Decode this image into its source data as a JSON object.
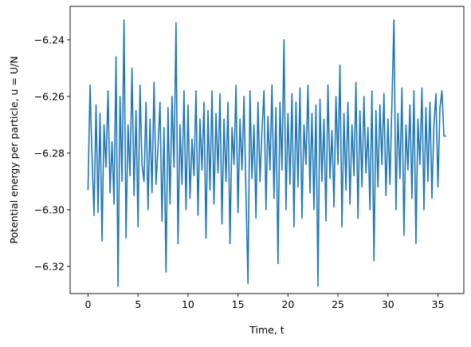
{
  "chart_data": {
    "type": "line",
    "xlabel": "Time, t",
    "ylabel": "Potential energy per particle, u = U/N",
    "color": "#1f77b4",
    "xlim": [
      -1.79,
      37.59
    ],
    "ylim": [
      -6.3296,
      -6.2282
    ],
    "xticks": [
      0,
      5,
      10,
      15,
      20,
      25,
      30,
      35
    ],
    "yticks": [
      {
        "value": -6.32,
        "label": "−6.32"
      },
      {
        "value": -6.3,
        "label": "−6.30"
      },
      {
        "value": -6.28,
        "label": "−6.28"
      },
      {
        "value": -6.26,
        "label": "−6.26"
      },
      {
        "value": -6.24,
        "label": "−6.24"
      }
    ],
    "x": [
      0,
      0.2,
      0.4,
      0.6,
      0.8,
      1,
      1.2,
      1.4,
      1.6,
      1.8,
      2,
      2.2,
      2.4,
      2.6,
      2.8,
      3,
      3.2,
      3.4,
      3.6,
      3.8,
      4,
      4.2,
      4.4,
      4.6,
      4.8,
      5,
      5.2,
      5.4,
      5.6,
      5.8,
      6,
      6.2,
      6.4,
      6.6,
      6.8,
      7,
      7.2,
      7.4,
      7.6,
      7.8,
      8,
      8.2,
      8.4,
      8.6,
      8.8,
      9,
      9.2,
      9.4,
      9.6,
      9.8,
      10,
      10.2,
      10.4,
      10.6,
      10.8,
      11,
      11.2,
      11.4,
      11.6,
      11.8,
      12,
      12.2,
      12.4,
      12.6,
      12.8,
      13,
      13.2,
      13.4,
      13.6,
      13.8,
      14,
      14.2,
      14.4,
      14.6,
      14.8,
      15,
      15.2,
      15.4,
      15.6,
      15.8,
      16,
      16.2,
      16.4,
      16.6,
      16.8,
      17,
      17.2,
      17.4,
      17.6,
      17.8,
      18,
      18.2,
      18.4,
      18.6,
      18.8,
      19,
      19.2,
      19.4,
      19.6,
      19.8,
      20,
      20.2,
      20.4,
      20.6,
      20.8,
      21,
      21.2,
      21.4,
      21.6,
      21.8,
      22,
      22.2,
      22.4,
      22.6,
      22.8,
      23,
      23.2,
      23.4,
      23.6,
      23.8,
      24,
      24.2,
      24.4,
      24.6,
      24.8,
      25,
      25.2,
      25.4,
      25.6,
      25.8,
      26,
      26.2,
      26.4,
      26.6,
      26.8,
      27,
      27.2,
      27.4,
      27.6,
      27.8,
      28,
      28.2,
      28.4,
      28.6,
      28.8,
      29,
      29.2,
      29.4,
      29.6,
      29.8,
      30,
      30.2,
      30.4,
      30.6,
      30.8,
      31,
      31.2,
      31.4,
      31.6,
      31.8,
      32,
      32.2,
      32.4,
      32.6,
      32.8,
      33,
      33.2,
      33.4,
      33.6,
      33.8,
      34,
      34.2,
      34.4,
      34.6,
      34.8,
      35,
      35.2,
      35.4,
      35.6,
      35.8
    ],
    "values": [
      -6.293,
      -6.256,
      -6.281,
      -6.302,
      -6.263,
      -6.301,
      -6.266,
      -6.311,
      -6.27,
      -6.285,
      -6.258,
      -6.294,
      -6.276,
      -6.298,
      -6.246,
      -6.327,
      -6.26,
      -6.29,
      -6.233,
      -6.31,
      -6.27,
      -6.288,
      -6.25,
      -6.295,
      -6.265,
      -6.306,
      -6.256,
      -6.284,
      -6.29,
      -6.262,
      -6.3,
      -6.268,
      -6.294,
      -6.255,
      -6.291,
      -6.278,
      -6.262,
      -6.304,
      -6.271,
      -6.322,
      -6.264,
      -6.298,
      -6.26,
      -6.285,
      -6.234,
      -6.312,
      -6.27,
      -6.291,
      -6.258,
      -6.3,
      -6.263,
      -6.296,
      -6.275,
      -6.288,
      -6.258,
      -6.302,
      -6.268,
      -6.286,
      -6.262,
      -6.31,
      -6.265,
      -6.293,
      -6.258,
      -6.298,
      -6.266,
      -6.287,
      -6.259,
      -6.305,
      -6.268,
      -6.29,
      -6.262,
      -6.312,
      -6.271,
      -6.284,
      -6.256,
      -6.301,
      -6.268,
      -6.286,
      -6.26,
      -6.295,
      -6.326,
      -6.258,
      -6.289,
      -6.27,
      -6.303,
      -6.262,
      -6.29,
      -6.272,
      -6.258,
      -6.3,
      -6.267,
      -6.286,
      -6.256,
      -6.296,
      -6.264,
      -6.319,
      -6.262,
      -6.286,
      -6.24,
      -6.3,
      -6.266,
      -6.291,
      -6.259,
      -6.306,
      -6.262,
      -6.292,
      -6.257,
      -6.303,
      -6.27,
      -6.284,
      -6.256,
      -6.294,
      -6.266,
      -6.3,
      -6.263,
      -6.327,
      -6.261,
      -6.29,
      -6.268,
      -6.304,
      -6.256,
      -6.289,
      -6.272,
      -6.299,
      -6.26,
      -6.284,
      -6.249,
      -6.306,
      -6.266,
      -6.293,
      -6.262,
      -6.298,
      -6.27,
      -6.288,
      -6.255,
      -6.303,
      -6.265,
      -6.292,
      -6.26,
      -6.287,
      -6.271,
      -6.3,
      -6.258,
      -6.318,
      -6.265,
      -6.292,
      -6.263,
      -6.284,
      -6.259,
      -6.295,
      -6.268,
      -6.291,
      -6.262,
      -6.233,
      -6.3,
      -6.266,
      -6.289,
      -6.257,
      -6.309,
      -6.27,
      -6.286,
      -6.263,
      -6.296,
      -6.258,
      -6.312,
      -6.268,
      -6.284,
      -6.257,
      -6.3,
      -6.264,
      -6.29,
      -6.262,
      -6.296,
      -6.27,
      -6.259,
      -6.292,
      -6.264,
      -6.258,
      -6.274,
      -6.274
    ]
  }
}
